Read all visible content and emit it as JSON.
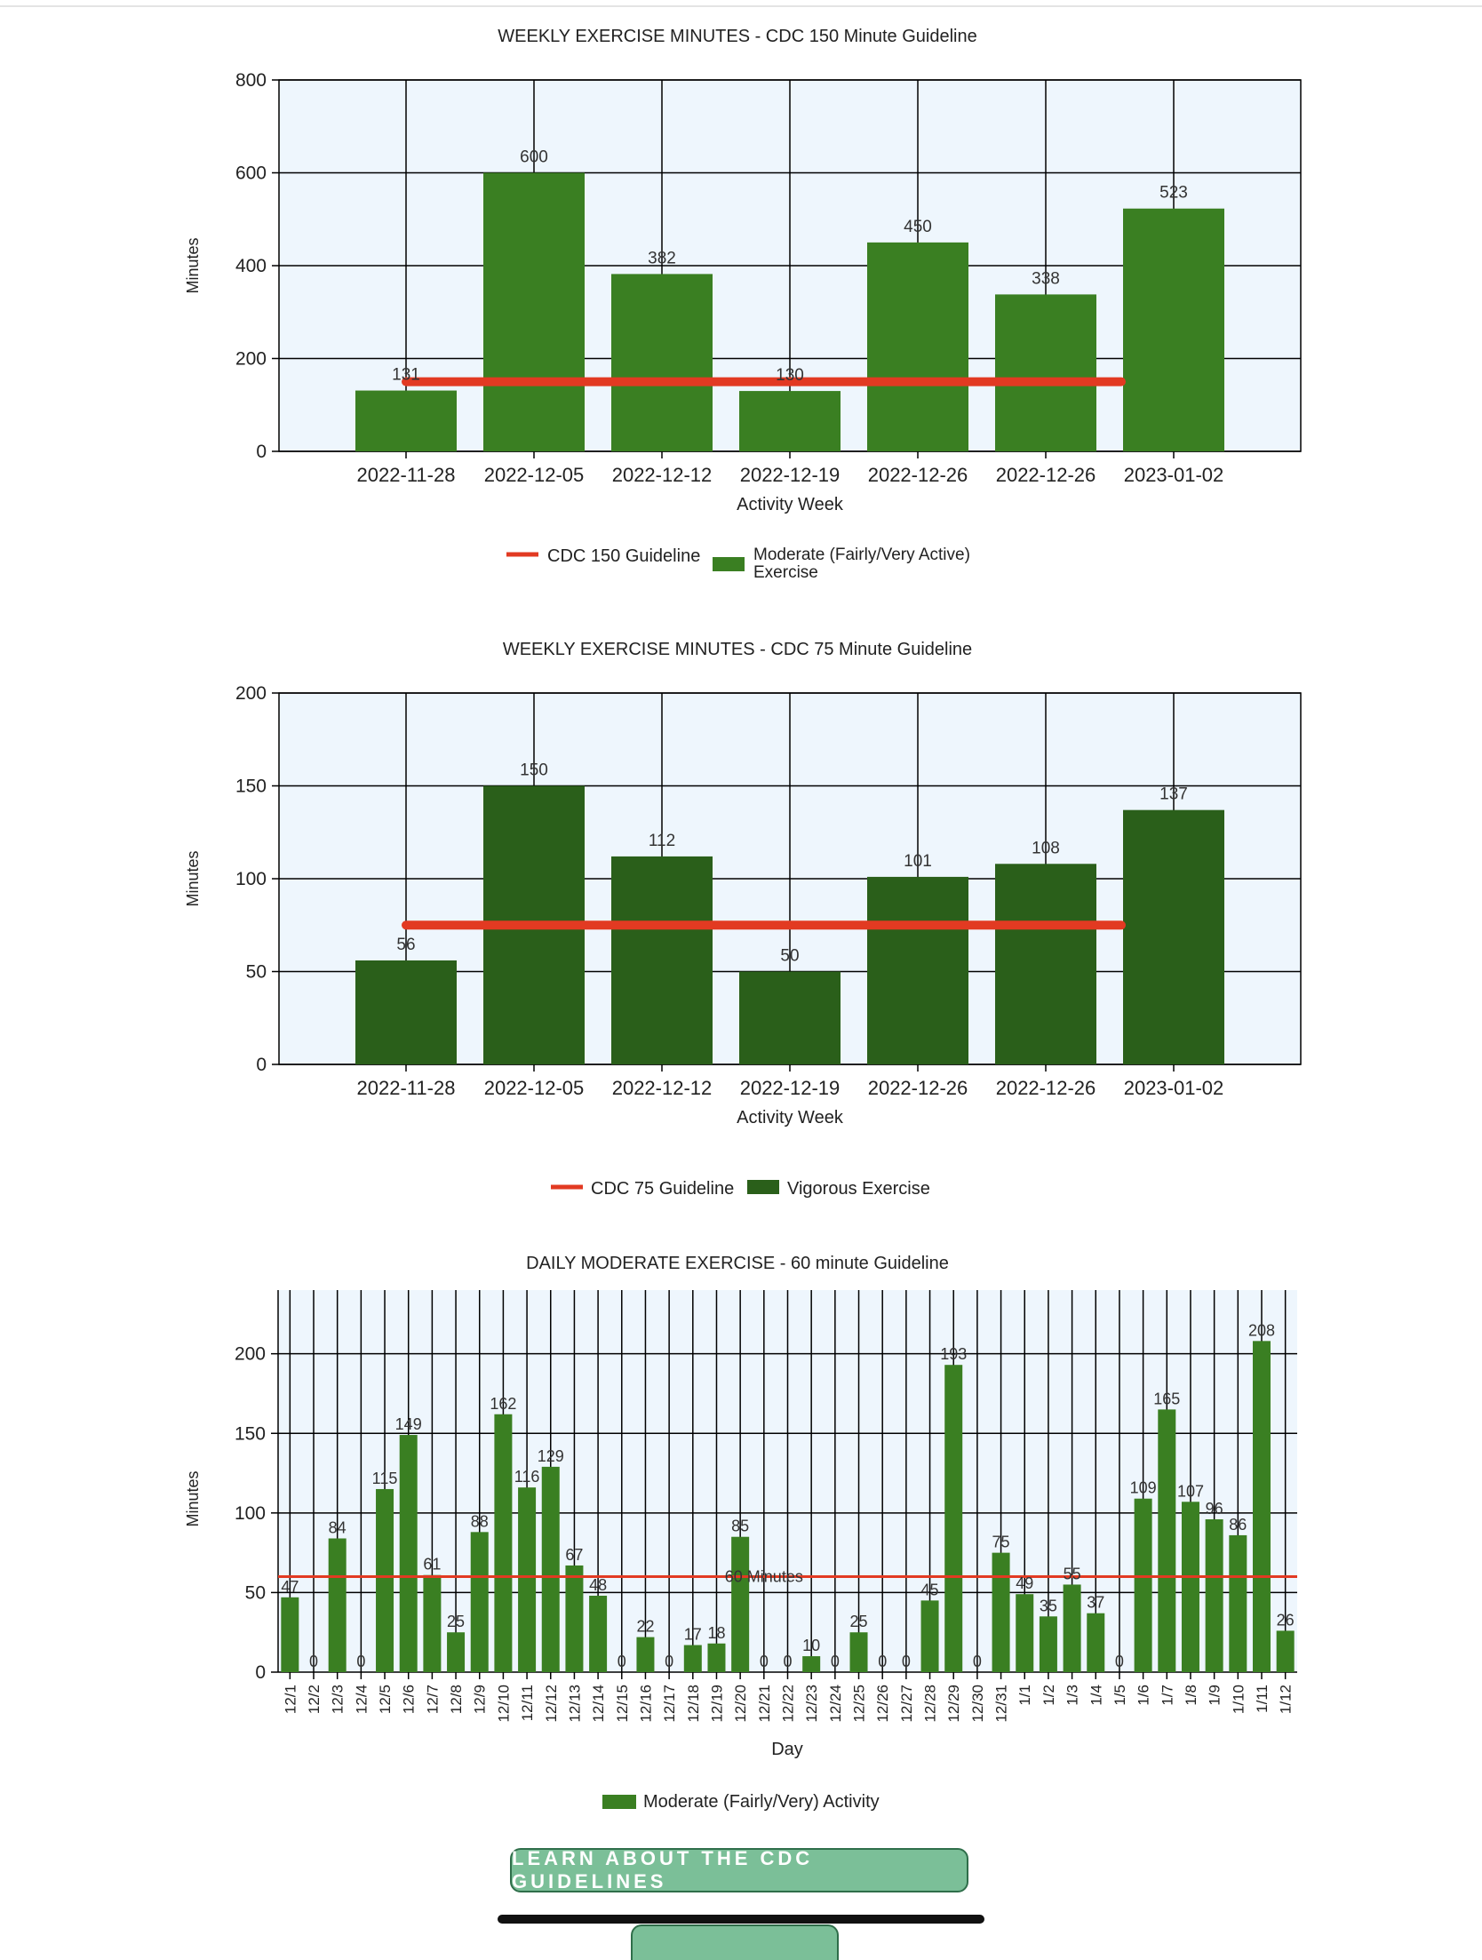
{
  "colors": {
    "moderate_bar": "#3a7f22",
    "vigorous_bar": "#2a5f1a",
    "guideline": "#e23a22",
    "plot_bg": "#eef6fd",
    "grid": "#000000"
  },
  "chart_data": [
    {
      "type": "bar",
      "title": "WEEKLY EXERCISE MINUTES - CDC 150 Minute Guideline",
      "xlabel": "Activity Week",
      "ylabel": "Minutes",
      "ylim": [
        0,
        800
      ],
      "yticks": [
        "0",
        "200",
        "400",
        "600",
        "800"
      ],
      "categories": [
        "2022-11-28",
        "2022-12-05",
        "2022-12-12",
        "2022-12-19",
        "2022-12-26",
        "2022-12-26",
        "2023-01-02"
      ],
      "series": [
        {
          "name": "Moderate (Fairly/Very Active) Exercise",
          "values": [
            131,
            600,
            382,
            130,
            450,
            338,
            523
          ]
        }
      ],
      "guideline": {
        "name": "CDC 150 Guideline",
        "value": 150
      },
      "legend": [
        "CDC 150 Guideline",
        "Moderate (Fairly/Very Active) Exercise"
      ],
      "grid": true,
      "legend_placement": "bottom-center"
    },
    {
      "type": "bar",
      "title": "WEEKLY EXERCISE MINUTES - CDC 75 Minute Guideline",
      "xlabel": "Activity Week",
      "ylabel": "Minutes",
      "ylim": [
        0,
        200
      ],
      "yticks": [
        "0",
        "50",
        "100",
        "150",
        "200"
      ],
      "categories": [
        "2022-11-28",
        "2022-12-05",
        "2022-12-12",
        "2022-12-19",
        "2022-12-26",
        "2022-12-26",
        "2023-01-02"
      ],
      "series": [
        {
          "name": "Vigorous Exercise",
          "values": [
            56,
            150,
            112,
            50,
            101,
            108,
            137
          ]
        }
      ],
      "guideline": {
        "name": "CDC 75 Guideline",
        "value": 75
      },
      "legend": [
        "CDC 75 Guideline",
        "Vigorous Exercise"
      ],
      "grid": true,
      "legend_placement": "bottom-center"
    },
    {
      "type": "bar",
      "title": "DAILY MODERATE EXERCISE - 60 minute Guideline",
      "xlabel": "Day",
      "ylabel": "Minutes",
      "ylim": [
        0,
        240
      ],
      "yticks": [
        "0",
        "50",
        "100",
        "150",
        "200"
      ],
      "categories": [
        "12/1",
        "12/2",
        "12/3",
        "12/4",
        "12/5",
        "12/6",
        "12/7",
        "12/8",
        "12/9",
        "12/10",
        "12/11",
        "12/12",
        "12/13",
        "12/14",
        "12/15",
        "12/16",
        "12/17",
        "12/18",
        "12/19",
        "12/20",
        "12/21",
        "12/22",
        "12/23",
        "12/24",
        "12/25",
        "12/26",
        "12/27",
        "12/28",
        "12/29",
        "12/30",
        "12/31",
        "1/1",
        "1/2",
        "1/3",
        "1/4",
        "1/5",
        "1/6",
        "1/7",
        "1/8",
        "1/9",
        "1/10",
        "1/11",
        "1/12"
      ],
      "series": [
        {
          "name": "Moderate (Fairly/Very) Activity",
          "values": [
            47,
            0,
            84,
            0,
            115,
            149,
            61,
            25,
            88,
            162,
            116,
            129,
            67,
            48,
            0,
            22,
            0,
            17,
            18,
            85,
            0,
            0,
            10,
            0,
            25,
            0,
            0,
            45,
            193,
            0,
            75,
            49,
            35,
            55,
            37,
            0,
            109,
            165,
            107,
            96,
            86,
            208,
            26
          ]
        }
      ],
      "guideline": {
        "name": "60 Minutes",
        "value": 60
      },
      "legend": [
        "Moderate (Fairly/Very) Activity"
      ],
      "grid": true,
      "legend_placement": "bottom-center"
    }
  ],
  "button": {
    "label": "LEARN ABOUT THE CDC GUIDELINES"
  }
}
